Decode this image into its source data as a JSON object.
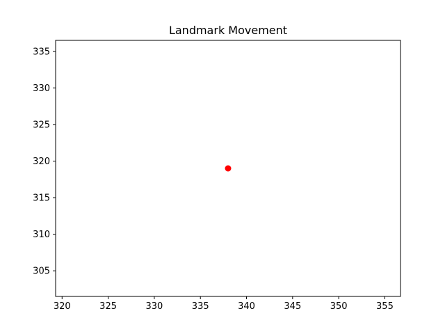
{
  "chart_data": {
    "type": "scatter",
    "title": "Landmark Movement",
    "xlabel": "",
    "ylabel": "",
    "xlim": [
      319.3,
      356.7
    ],
    "ylim": [
      301.5,
      336.5
    ],
    "x_ticks": [
      320,
      325,
      330,
      335,
      340,
      345,
      350,
      355
    ],
    "y_ticks": [
      305,
      310,
      315,
      320,
      325,
      330,
      335
    ],
    "grid": false,
    "legend": "none",
    "series": [
      {
        "color": "#ff0000",
        "marker": "circle",
        "points": [
          {
            "x": 338,
            "y": 319
          }
        ]
      }
    ]
  }
}
